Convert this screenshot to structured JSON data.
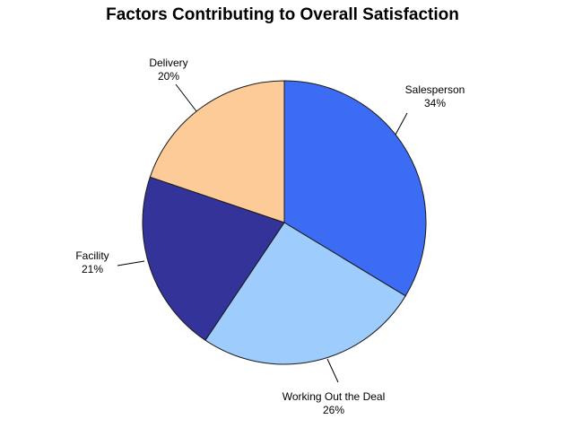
{
  "chart_data": {
    "type": "pie",
    "title": "Factors Contributing to Overall Satisfaction",
    "slices": [
      {
        "name": "Salesperson",
        "value": 34,
        "value_label": "34%",
        "color": "#3C6BF4"
      },
      {
        "name": "Working Out the Deal",
        "value": 26,
        "value_label": "26%",
        "color": "#9ECCFC"
      },
      {
        "name": "Facility",
        "value": 21,
        "value_label": "21%",
        "color": "#333399"
      },
      {
        "name": "Delivery",
        "value": 20,
        "value_label": "20%",
        "color": "#FCCB98"
      }
    ],
    "start_angle_deg": 0,
    "direction": "clockwise",
    "legend": "none",
    "labels": "outside with leader lines"
  }
}
